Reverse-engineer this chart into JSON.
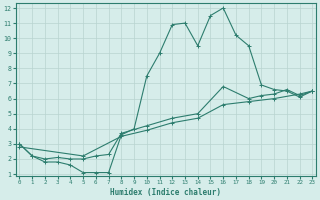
{
  "xlabel": "Humidex (Indice chaleur)",
  "bg_color": "#d6edea",
  "line_color": "#2d7d6e",
  "grid_color": "#b8d4d0",
  "xlim": [
    0,
    23
  ],
  "ylim": [
    1,
    12
  ],
  "xticks": [
    0,
    1,
    2,
    3,
    4,
    5,
    6,
    7,
    8,
    9,
    10,
    11,
    12,
    13,
    14,
    15,
    16,
    17,
    18,
    19,
    20,
    21,
    22,
    23
  ],
  "yticks": [
    1,
    2,
    3,
    4,
    5,
    6,
    7,
    8,
    9,
    10,
    11,
    12
  ],
  "curve1_x": [
    0,
    1,
    2,
    3,
    4,
    5,
    6,
    7,
    8,
    9,
    10,
    11,
    12,
    13,
    14,
    15,
    16,
    17,
    18,
    19,
    20,
    21,
    22,
    23
  ],
  "curve1_y": [
    3.0,
    2.2,
    1.8,
    1.8,
    1.6,
    1.1,
    1.1,
    1.1,
    3.6,
    4.0,
    7.5,
    9.0,
    10.9,
    11.0,
    9.5,
    11.5,
    12.0,
    10.2,
    9.5,
    6.9,
    6.6,
    6.5,
    6.1,
    6.5
  ],
  "curve2_x": [
    0,
    1,
    2,
    3,
    4,
    5,
    6,
    7,
    8,
    10,
    12,
    14,
    16,
    18,
    19,
    20,
    21,
    22,
    23
  ],
  "curve2_y": [
    3.0,
    2.2,
    2.0,
    2.1,
    2.0,
    2.0,
    2.2,
    2.3,
    3.7,
    4.2,
    4.7,
    5.0,
    6.8,
    6.0,
    6.2,
    6.3,
    6.6,
    6.2,
    6.5
  ],
  "curve3_x": [
    0,
    5,
    8,
    10,
    12,
    14,
    16,
    18,
    20,
    22,
    23
  ],
  "curve3_y": [
    2.8,
    2.2,
    3.5,
    3.9,
    4.4,
    4.7,
    5.6,
    5.8,
    6.0,
    6.3,
    6.5
  ]
}
